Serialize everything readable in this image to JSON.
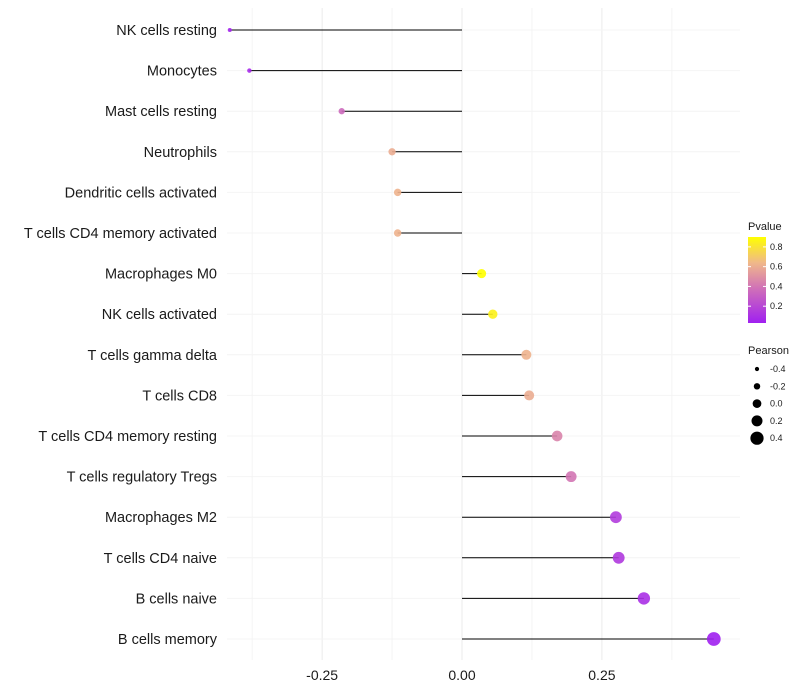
{
  "chart_data": {
    "type": "lollipop",
    "title": "",
    "xlabel": "",
    "ylabel": "",
    "xlim": [
      -0.42,
      0.47
    ],
    "xticks": [
      -0.25,
      0.0,
      0.25
    ],
    "xtick_labels": [
      "-0.25",
      "0.00",
      "0.25"
    ],
    "categories": [
      "NK cells resting",
      "Monocytes",
      "Mast cells resting",
      "Neutrophils",
      "Dendritic cells activated",
      "T cells CD4 memory activated",
      "Macrophages M0",
      "NK cells activated",
      "T cells gamma delta",
      "T cells CD8",
      "T cells CD4 memory resting",
      "T cells regulatory  Tregs ",
      "Macrophages M2",
      "T cells CD4 naive",
      "B cells naive",
      "B cells memory"
    ],
    "pearson": [
      -0.415,
      -0.38,
      -0.215,
      -0.125,
      -0.115,
      -0.115,
      0.035,
      0.055,
      0.115,
      0.12,
      0.17,
      0.195,
      0.275,
      0.28,
      0.325,
      0.45
    ],
    "pvalue": [
      0.05,
      0.07,
      0.35,
      0.6,
      0.62,
      0.62,
      0.9,
      0.85,
      0.62,
      0.6,
      0.45,
      0.4,
      0.15,
      0.14,
      0.1,
      0.03
    ],
    "colors": {
      "high": "#ffff00",
      "mid_high": "#f0b88a",
      "mid": "#d070b8",
      "low": "#a020f0",
      "segment": "#000000",
      "grid": "#ebebeb"
    },
    "legend_pvalue": {
      "title": "Pvalue",
      "ticks": [
        0.8,
        0.6,
        0.4,
        0.2
      ],
      "labels": [
        "0.8",
        "0.6",
        "0.4",
        "0.2"
      ],
      "range": [
        0.03,
        0.9
      ]
    },
    "legend_pearson": {
      "title": "Pearson",
      "values": [
        -0.4,
        -0.2,
        0.0,
        0.2,
        0.4
      ],
      "labels": [
        "-0.4",
        "-0.2",
        "0.0",
        "0.2",
        "0.4"
      ]
    }
  }
}
